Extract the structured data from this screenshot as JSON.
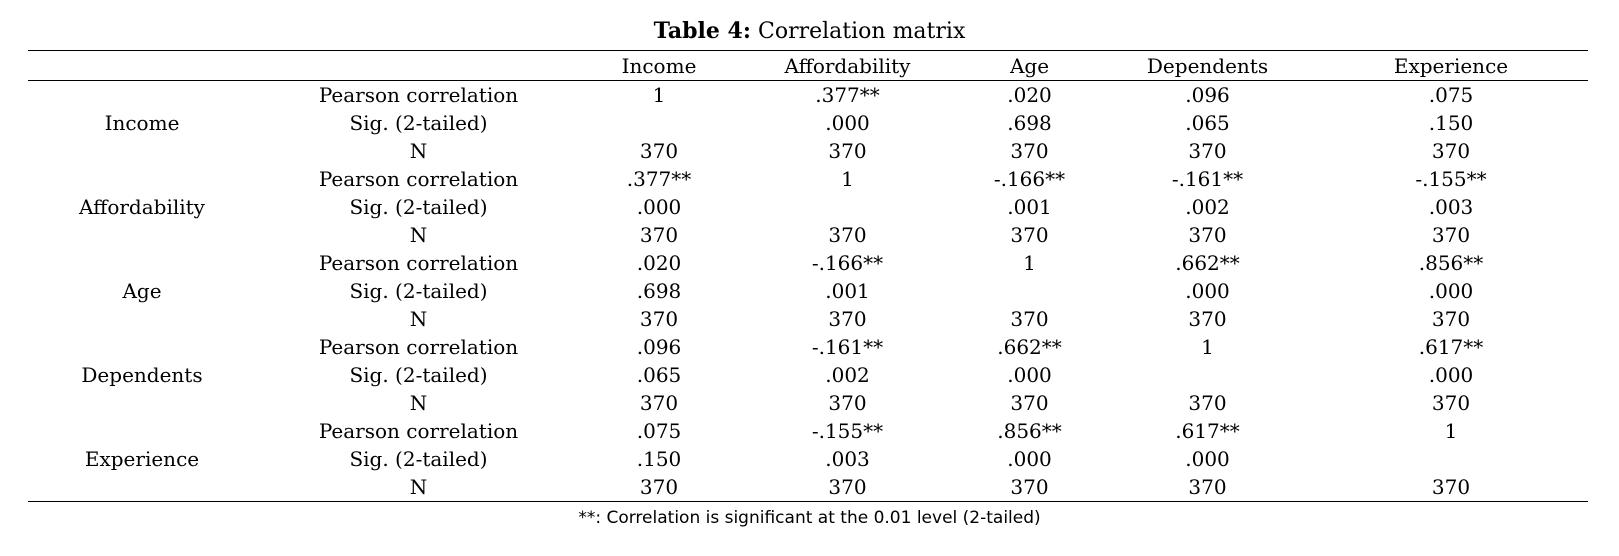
{
  "title": {
    "bold": "Table 4:",
    "rest": "Correlation matrix"
  },
  "table": {
    "corner1": "",
    "corner2": "",
    "columns": [
      "Income",
      "Affordability",
      "Age",
      "Dependents",
      "Experience"
    ],
    "groups": [
      {
        "variable": "Income",
        "rows": [
          {
            "stat": "Pearson correlation",
            "values": [
              "1",
              ".377**",
              ".020",
              ".096",
              ".075"
            ]
          },
          {
            "stat": "Sig. (2-tailed)",
            "values": [
              "",
              ".000",
              ".698",
              ".065",
              ".150"
            ]
          },
          {
            "stat": "N",
            "values": [
              "370",
              "370",
              "370",
              "370",
              "370"
            ]
          }
        ]
      },
      {
        "variable": "Affordability",
        "rows": [
          {
            "stat": "Pearson correlation",
            "values": [
              ".377**",
              "1",
              "-.166**",
              "-.161**",
              "-.155**"
            ]
          },
          {
            "stat": "Sig. (2-tailed)",
            "values": [
              ".000",
              "",
              ".001",
              ".002",
              ".003"
            ]
          },
          {
            "stat": "N",
            "values": [
              "370",
              "370",
              "370",
              "370",
              "370"
            ]
          }
        ]
      },
      {
        "variable": "Age",
        "rows": [
          {
            "stat": "Pearson correlation",
            "values": [
              ".020",
              "-.166**",
              "1",
              ".662**",
              ".856**"
            ]
          },
          {
            "stat": "Sig. (2-tailed)",
            "values": [
              ".698",
              ".001",
              "",
              ".000",
              ".000"
            ]
          },
          {
            "stat": "N",
            "values": [
              "370",
              "370",
              "370",
              "370",
              "370"
            ]
          }
        ]
      },
      {
        "variable": "Dependents",
        "rows": [
          {
            "stat": "Pearson correlation",
            "values": [
              ".096",
              "-.161**",
              ".662**",
              "1",
              ".617**"
            ]
          },
          {
            "stat": "Sig. (2-tailed)",
            "values": [
              ".065",
              ".002",
              ".000",
              "",
              ".000"
            ]
          },
          {
            "stat": "N",
            "values": [
              "370",
              "370",
              "370",
              "370",
              "370"
            ]
          }
        ]
      },
      {
        "variable": "Experience",
        "rows": [
          {
            "stat": "Pearson correlation",
            "values": [
              ".075",
              "-.155**",
              ".856**",
              ".617**",
              "1"
            ]
          },
          {
            "stat": "Sig. (2-tailed)",
            "values": [
              ".150",
              ".003",
              ".000",
              ".000",
              ""
            ]
          },
          {
            "stat": "N",
            "values": [
              "370",
              "370",
              "370",
              "370",
              "370"
            ]
          }
        ]
      }
    ]
  },
  "footnote": "**: Correlation is significant at the 0.01 level (2-tailed)"
}
